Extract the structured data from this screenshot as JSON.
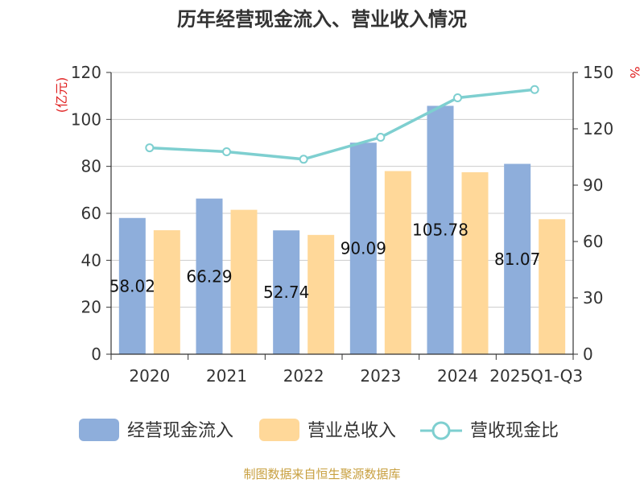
{
  "chart_data": {
    "type": "bar",
    "title": "历年经营现金流入、营业收入情况",
    "categories": [
      "2020",
      "2021",
      "2022",
      "2023",
      "2024",
      "2025Q1-Q3"
    ],
    "left_unit": "(亿元)",
    "right_unit": "%",
    "ylim_left": [
      0,
      120
    ],
    "ylim_right": [
      0,
      150
    ],
    "left_ticks": [
      "0",
      "20",
      "40",
      "60",
      "80",
      "100",
      "120"
    ],
    "right_ticks": [
      "0",
      "30",
      "60",
      "90",
      "120",
      "150"
    ],
    "series": [
      {
        "name": "经营现金流入",
        "type": "bar",
        "axis": "left",
        "color": "#8eaedb",
        "values": [
          58.02,
          66.29,
          52.74,
          90.09,
          105.78,
          81.07
        ],
        "labels": [
          "58.02",
          "66.29",
          "52.74",
          "90.09",
          "105.78",
          "81.07"
        ]
      },
      {
        "name": "营业总收入",
        "type": "bar",
        "axis": "left",
        "color": "#ffd899",
        "values": [
          52.8,
          61.5,
          50.8,
          78.0,
          77.5,
          57.5
        ]
      },
      {
        "name": "营收现金比",
        "type": "line",
        "axis": "right",
        "color": "#7ecfd0",
        "values": [
          109.9,
          107.8,
          103.8,
          115.5,
          136.5,
          140.9
        ]
      }
    ],
    "legend_position": "bottom",
    "grid": true
  },
  "source": "制图数据来自恒生聚源数据库"
}
